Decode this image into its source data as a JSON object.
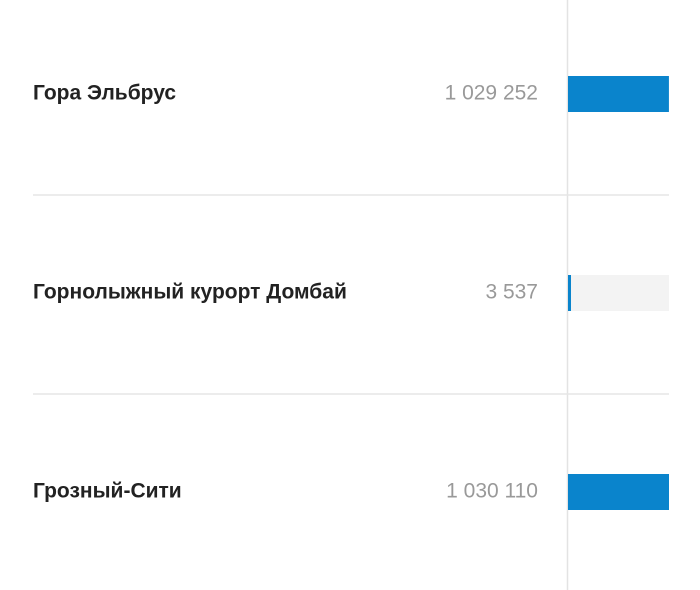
{
  "chart_data": {
    "type": "bar",
    "categories": [
      "Гора Эльбрус",
      "Горнолыжный курорт Домбай",
      "Грозный-Сити"
    ],
    "values": [
      1029252,
      3537,
      1030110
    ],
    "value_labels": [
      "1 029 252",
      "3 537",
      "1 030 110"
    ],
    "color": "#0a84cc"
  }
}
